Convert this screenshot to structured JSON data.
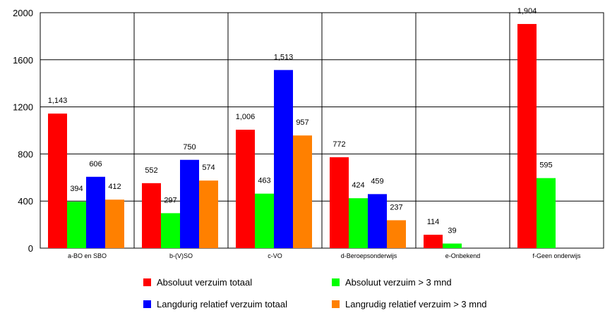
{
  "chart_data": {
    "type": "bar",
    "title": "",
    "xlabel": "",
    "ylabel": "",
    "ylim": [
      0,
      2000
    ],
    "yticks": [
      0,
      400,
      800,
      1200,
      1600,
      2000
    ],
    "grid": true,
    "legend_position": "bottom",
    "categories": [
      "a-BO en SBO",
      "b-(V)SO",
      "c-VO",
      "d-Beroepsonderwijs",
      "e-Onbekend",
      "f-Geen onderwijs"
    ],
    "series": [
      {
        "name": "Absoluut verzuim totaal",
        "color": "#ff0000",
        "values": [
          1143,
          552,
          1006,
          772,
          114,
          1904
        ],
        "labels": [
          "1,143",
          "552",
          "1,006",
          "772",
          "114",
          "1,904"
        ]
      },
      {
        "name": "Absoluut verzuim > 3 mnd",
        "color": "#00ff00",
        "values": [
          394,
          297,
          463,
          424,
          39,
          595
        ],
        "labels": [
          "394",
          "297",
          "463",
          "424",
          "39",
          "595"
        ]
      },
      {
        "name": "Langdurig relatief verzuim totaal",
        "color": "#0000ff",
        "values": [
          606,
          750,
          1513,
          459,
          null,
          null
        ],
        "labels": [
          "606",
          "750",
          "1,513",
          "459",
          "",
          ""
        ]
      },
      {
        "name": "Langrudig relatief verzuim > 3 mnd",
        "color": "#ff8000",
        "values": [
          412,
          574,
          957,
          237,
          null,
          null
        ],
        "labels": [
          "412",
          "574",
          "957",
          "237",
          "",
          ""
        ]
      }
    ]
  }
}
